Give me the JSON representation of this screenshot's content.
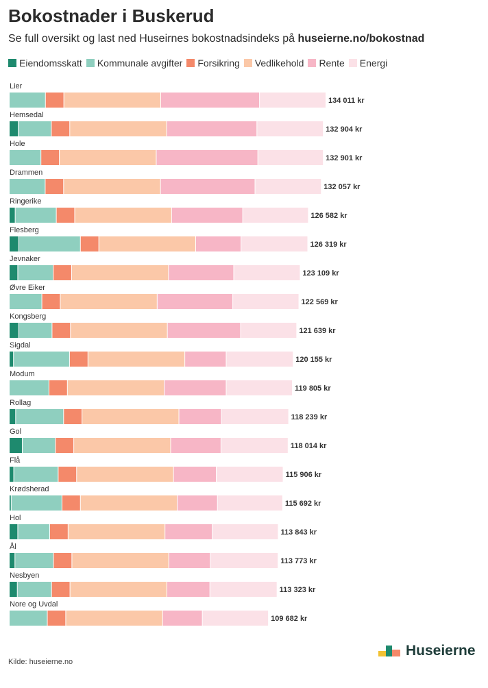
{
  "title": "Bokostnader i Buskerud",
  "subtitle": {
    "prefix": "Se full oversikt og last ned Huseirnes bokostnadsindeks på",
    "link": "huseierne.no/bokostnad"
  },
  "source": "Kilde: huseierne.no",
  "logo": {
    "name": "Huseierne",
    "icon": "huseierne-house-logo"
  },
  "colors": {
    "Eiendomsskatt": "#1e8a6e",
    "Kommunale avgifter": "#8fcfbf",
    "Forsikring": "#f4896a",
    "Vedlikehold": "#fbc8a8",
    "Rente": "#f7b6c6",
    "Energi": "#fbe1e7"
  },
  "chart_data": {
    "type": "bar",
    "orientation": "horizontal",
    "stacked": true,
    "unit": "kr",
    "legend_position": "top",
    "grid": false,
    "series_names": [
      "Eiendomsskatt",
      "Kommunale avgifter",
      "Forsikring",
      "Vedlikehold",
      "Rente",
      "Energi"
    ],
    "categories": [
      "Lier",
      "Hemsedal",
      "Hole",
      "Drammen",
      "Ringerike",
      "Flesberg",
      "Jevnaker",
      "Øvre Eiker",
      "Kongsberg",
      "Sigdal",
      "Modum",
      "Rollag",
      "Gol",
      "Flå",
      "Krødsherad",
      "Hol",
      "Ål",
      "Nesbyen",
      "Nore og Uvdal"
    ],
    "total_labels": [
      "134 011 kr",
      "132 904 kr",
      "132 901 kr",
      "132 057 kr",
      "126 582 kr",
      "126 319 kr",
      "123 109 kr",
      "122 569 kr",
      "121 639 kr",
      "120 155 kr",
      "119 805 kr",
      "118 239 kr",
      "118 014 kr",
      "115 906 kr",
      "115 692 kr",
      "113 843 kr",
      "113 773 kr",
      "113 323 kr",
      "109 682 kr"
    ],
    "totals": [
      134011,
      132904,
      132901,
      132057,
      126582,
      126319,
      123109,
      122569,
      121639,
      120155,
      119805,
      118239,
      118014,
      115906,
      115692,
      113843,
      113773,
      113323,
      109682
    ],
    "series": [
      {
        "name": "Eiendomsskatt",
        "values": [
          0,
          3800,
          0,
          0,
          2500,
          4000,
          3600,
          0,
          4000,
          1800,
          0,
          2700,
          5500,
          1900,
          800,
          3600,
          2400,
          3400,
          0
        ]
      },
      {
        "name": "Kommunale avgifter",
        "values": [
          15300,
          14000,
          13400,
          15200,
          17400,
          26100,
          15000,
          13800,
          14100,
          23700,
          16800,
          20300,
          14000,
          18800,
          21500,
          13500,
          16300,
          14500,
          16100
        ]
      },
      {
        "name": "Forsikring",
        "values": [
          7800,
          7800,
          7800,
          7800,
          7800,
          7800,
          7800,
          7800,
          7800,
          7800,
          7800,
          7800,
          7800,
          7800,
          7800,
          7800,
          7800,
          7800,
          7800
        ]
      },
      {
        "name": "Vedlikehold",
        "values": [
          41000,
          41000,
          41000,
          41000,
          41000,
          41000,
          41000,
          41000,
          41000,
          41000,
          41000,
          41000,
          41000,
          41000,
          41000,
          41000,
          41000,
          41000,
          41000
        ]
      },
      {
        "name": "Rente",
        "values": [
          41800,
          38200,
          43000,
          40000,
          30100,
          19200,
          27600,
          32000,
          31000,
          17500,
          26200,
          18000,
          21300,
          18100,
          17000,
          20000,
          17600,
          18200,
          16800
        ]
      },
      {
        "name": "Energi",
        "values": [
          28111,
          28104,
          27701,
          28057,
          27782,
          28219,
          28109,
          27969,
          23739,
          28355,
          28005,
          28439,
          28414,
          28306,
          27592,
          27943,
          28673,
          28423,
          27982
        ]
      }
    ]
  }
}
